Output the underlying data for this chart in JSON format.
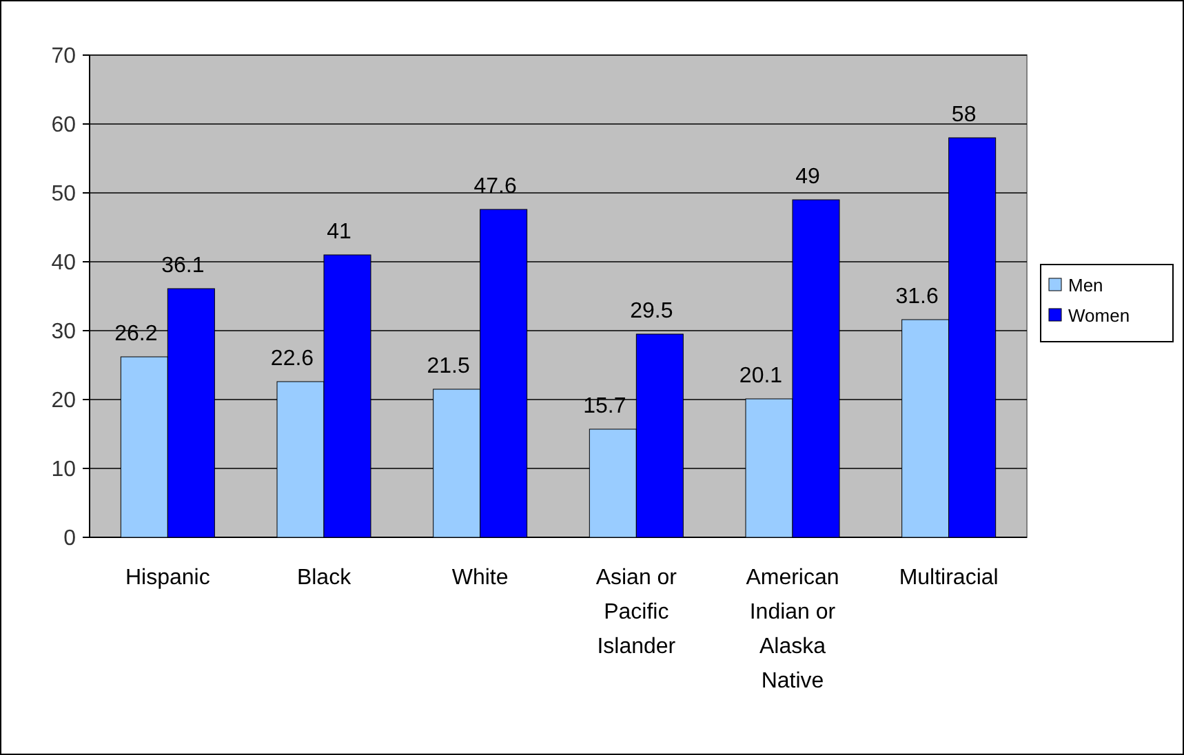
{
  "chart_data": {
    "type": "bar",
    "categories": [
      "Hispanic",
      "Black",
      "White",
      "Asian or Pacific Islander",
      "American Indian or Alaska Native",
      "Multiracial"
    ],
    "series": [
      {
        "name": "Men",
        "color": "#99ccff",
        "values": [
          26.2,
          22.6,
          21.5,
          15.7,
          20.1,
          31.6
        ]
      },
      {
        "name": "Women",
        "color": "#0000ff",
        "values": [
          36.1,
          41,
          47.6,
          29.5,
          49,
          58
        ]
      }
    ],
    "ylim": [
      0,
      70
    ],
    "yticks": [
      0,
      10,
      20,
      30,
      40,
      50,
      60,
      70
    ],
    "grid": "y",
    "legend": "right",
    "data_labels": true
  }
}
